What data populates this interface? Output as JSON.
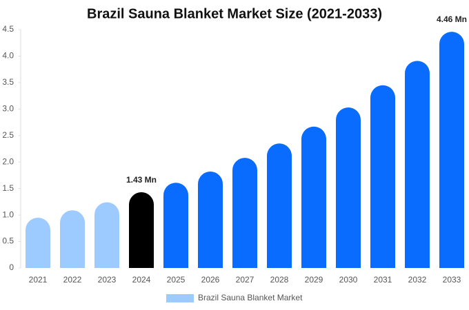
{
  "chart_data": {
    "type": "bar",
    "title": "Brazil Sauna Blanket Market Size (2021-2033)",
    "categories": [
      "2021",
      "2022",
      "2023",
      "2024",
      "2025",
      "2026",
      "2027",
      "2028",
      "2029",
      "2030",
      "2031",
      "2032",
      "2033"
    ],
    "series": [
      {
        "name": "Brazil Sauna Blanket Market",
        "color": "#9ecbff",
        "values": [
          0.95,
          1.09,
          1.24,
          1.43,
          1.61,
          1.82,
          2.08,
          2.35,
          2.67,
          3.03,
          3.45,
          3.91,
          4.46
        ],
        "value_labels": [
          null,
          null,
          null,
          "1.43 Mn",
          null,
          null,
          null,
          null,
          null,
          null,
          null,
          null,
          "4.46 Mn"
        ],
        "colors": [
          "#9ecbff",
          "#9ecbff",
          "#9ecbff",
          "#000000",
          "#0a6cff",
          "#0a6cff",
          "#0a6cff",
          "#0a6cff",
          "#0a6cff",
          "#0a6cff",
          "#0a6cff",
          "#0a6cff",
          "#0a6cff"
        ]
      }
    ],
    "ylim": [
      0,
      4.5
    ],
    "yticks": [
      0,
      0.5,
      {
        "value": 1,
        "label": "1.0"
      },
      1.5,
      {
        "value": 2,
        "label": "2.0"
      },
      2.5,
      {
        "value": 3,
        "label": "3.0"
      },
      3.5,
      {
        "value": 4,
        "label": "4.0"
      },
      4.5
    ],
    "grid": false
  }
}
